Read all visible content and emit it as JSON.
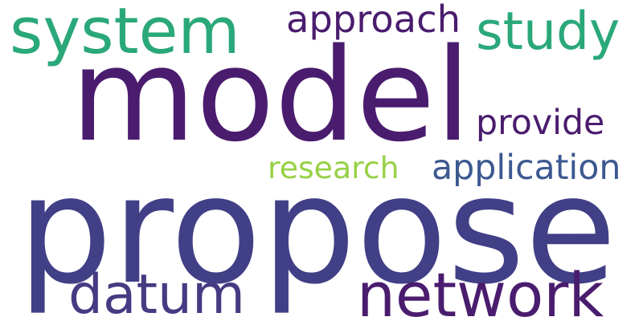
{
  "words": [
    {
      "text": "system",
      "color": "#2aa87a",
      "rank": 3
    },
    {
      "text": "approach",
      "color": "#4a1c6e",
      "rank": 6
    },
    {
      "text": "study",
      "color": "#2aa87a",
      "rank": 4
    },
    {
      "text": "model",
      "color": "#4a1c6e",
      "rank": 2
    },
    {
      "text": "provide",
      "color": "#4a1c6e",
      "rank": 7
    },
    {
      "text": "research",
      "color": "#97d145",
      "rank": 9
    },
    {
      "text": "application",
      "color": "#3c5890",
      "rank": 8
    },
    {
      "text": "propose",
      "color": "#413f86",
      "rank": 1
    },
    {
      "text": "datum",
      "color": "#473a82",
      "rank": 5
    },
    {
      "text": "network",
      "color": "#4a1c6e",
      "rank": 5
    }
  ]
}
